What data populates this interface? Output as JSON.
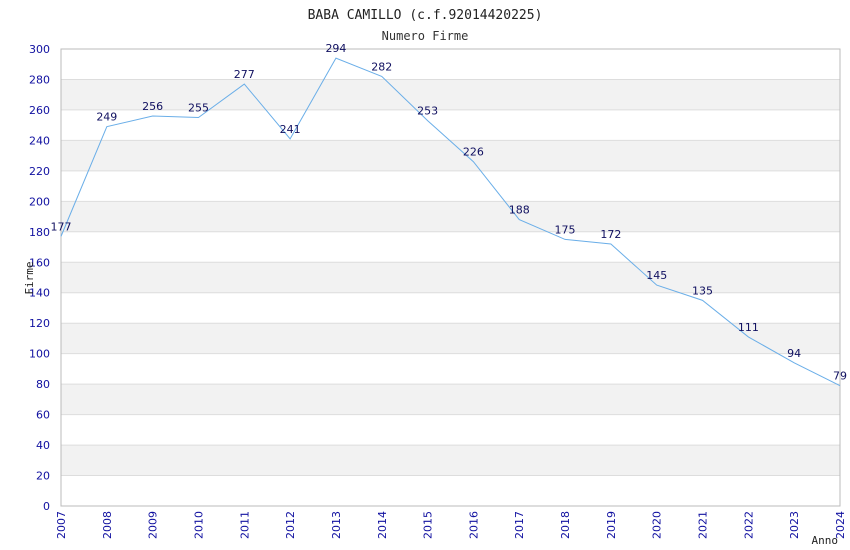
{
  "chart_data": {
    "type": "line",
    "title": "BABA CAMILLO (c.f.92014420225)",
    "subtitle": "Numero Firme",
    "xlabel": "Anno",
    "ylabel": "Firme",
    "x": [
      "2007",
      "2008",
      "2009",
      "2010",
      "2011",
      "2012",
      "2013",
      "2014",
      "2015",
      "2016",
      "2017",
      "2018",
      "2019",
      "2020",
      "2021",
      "2022",
      "2023",
      "2024"
    ],
    "series": [
      {
        "values": [
          177,
          249,
          256,
          255,
          277,
          241,
          294,
          282,
          253,
          226,
          188,
          175,
          172,
          145,
          135,
          111,
          94,
          79
        ]
      }
    ],
    "ylim": [
      0,
      300
    ],
    "ytick_step": 20,
    "grid": true,
    "colors": {
      "line": "#6aaee8",
      "band": "#f2f2f2",
      "grid": "#dddddd",
      "axis": "#aaaaaa",
      "tick_text": "#1010a0"
    }
  }
}
